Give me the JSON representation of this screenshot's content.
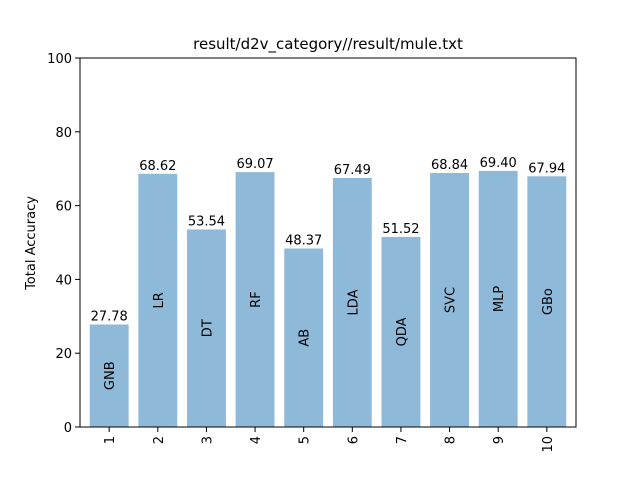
{
  "chart_data": {
    "type": "bar",
    "title": "result/d2v_category//result/mule.txt",
    "xlabel": "",
    "ylabel": "Total Accuracy",
    "ylim": [
      0,
      100
    ],
    "yticks": [
      0,
      20,
      40,
      60,
      80,
      100
    ],
    "categories": [
      "1",
      "2",
      "3",
      "4",
      "5",
      "6",
      "7",
      "8",
      "9",
      "10"
    ],
    "values": [
      27.78,
      68.62,
      53.54,
      69.07,
      48.37,
      67.49,
      51.52,
      68.84,
      69.4,
      67.94
    ],
    "value_labels": [
      "27.78",
      "68.62",
      "53.54",
      "69.07",
      "48.37",
      "67.49",
      "51.52",
      "68.84",
      "69.40",
      "67.94"
    ],
    "bar_names": [
      "GNB",
      "LR",
      "DT",
      "RF",
      "AB",
      "LDA",
      "QDA",
      "SVC",
      "MLP",
      "GBo"
    ],
    "bar_color": "#8fb9d9",
    "grid": false,
    "legend": "none"
  }
}
